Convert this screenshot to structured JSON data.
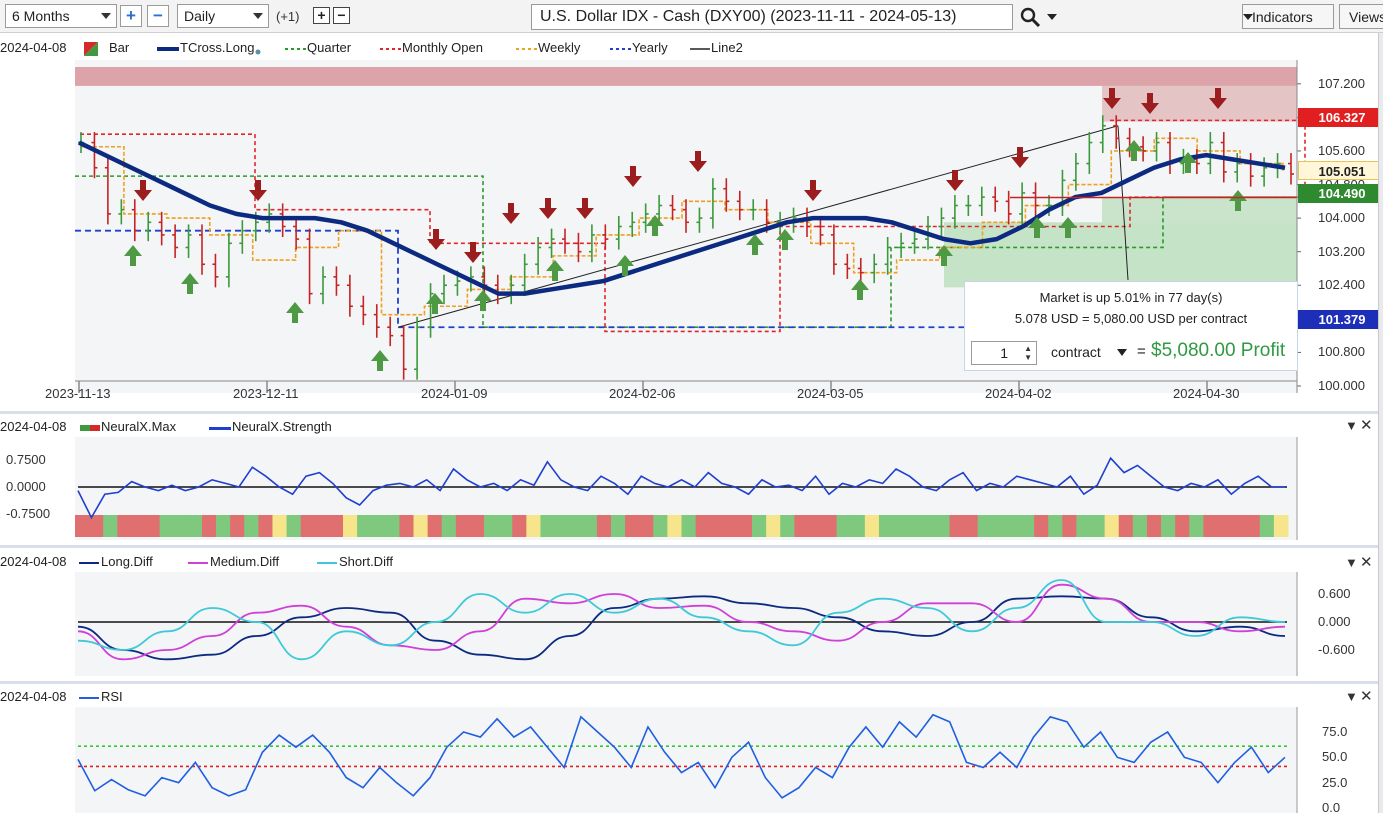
{
  "toolbar": {
    "range": "6 Months",
    "interval": "Daily",
    "offset": "(+1)",
    "zoom_in": "+",
    "zoom_out": "−",
    "add_label": "+",
    "remove_label": "−",
    "title": "U.S. Dollar IDX - Cash (DXY00) (2023-11-11 - 2024-05-13)",
    "indicators": "Indicators",
    "views": "Views"
  },
  "colors": {
    "tcross": "#0b2a80",
    "up_arrow": "#4e9a44",
    "down_arrow": "#9c1d1d",
    "quarter": "#2a9a2a",
    "monthly_open": "#e0262b",
    "weekly": "#f0a020",
    "yearly": "#1f3fcf",
    "line2": "#222222",
    "resistance_zone": "#d99a9f",
    "support_zone": "#9fd49f"
  },
  "main_pane": {
    "date_label": "2024-04-08",
    "legend": [
      {
        "name": "Bar",
        "icon": "bar-swatch-icon"
      },
      {
        "name": "TCross.Long",
        "icon": "dot-icon"
      },
      {
        "name": "Quarter"
      },
      {
        "name": "Monthly Open"
      },
      {
        "name": "Weekly"
      },
      {
        "name": "Yearly"
      },
      {
        "name": "Line2"
      }
    ],
    "price_tags": {
      "monthly_open": "106.327",
      "last": "105.051",
      "support": "104.490",
      "yearly": "101.379"
    },
    "y_ticks": [
      "107.200",
      "106.400",
      "105.600",
      "104.800",
      "104.000",
      "103.200",
      "102.400",
      "101.600",
      "100.800",
      "100.000"
    ],
    "x_ticks": [
      "2023-11-13",
      "2023-12-11",
      "2024-01-09",
      "2024-02-06",
      "2024-03-05",
      "2024-04-02",
      "2024-04-30"
    ]
  },
  "profit_box": {
    "summary": "Market is up 5.01% in 77 day(s)",
    "detail": "5.078 USD = 5,080.00 USD per contract",
    "quantity": "1",
    "unit": "contract",
    "equals": "=",
    "profit": "$5,080.00 Profit"
  },
  "neural_pane": {
    "date_label": "2024-04-08",
    "legend": [
      {
        "name": "NeuralX.Max"
      },
      {
        "name": "NeuralX.Strength"
      }
    ],
    "y_ticks": [
      "0.7500",
      "0.0000",
      "-0.7500"
    ]
  },
  "diff_pane": {
    "date_label": "2024-04-08",
    "legend": [
      {
        "name": "Long.Diff"
      },
      {
        "name": "Medium.Diff"
      },
      {
        "name": "Short.Diff"
      }
    ],
    "y_ticks": [
      "0.600",
      "0.000",
      "-0.600"
    ]
  },
  "rsi_pane": {
    "date_label": "2024-04-08",
    "legend": [
      {
        "name": "RSI"
      }
    ],
    "y_ticks": [
      "75.0",
      "50.0",
      "25.0",
      "0.0"
    ]
  },
  "chart_data": [
    {
      "type": "line",
      "x_range": [
        "2023-11-13",
        "2024-05-13"
      ],
      "ylim": [
        100.0,
        107.6
      ],
      "series": [
        {
          "name": "Bar",
          "values": [
            105.8,
            105.2,
            104.1,
            104.2,
            103.7,
            103.9,
            103.6,
            103.3,
            103.6,
            102.9,
            102.6,
            103.4,
            103.7,
            103.9,
            104.1,
            103.8,
            103.5,
            102.2,
            102.6,
            102.4,
            101.9,
            101.7,
            101.4,
            101.2,
            100.4,
            101.4,
            102.2,
            102.4,
            102.5,
            102.6,
            102.4,
            102.2,
            102.4,
            102.9,
            103.3,
            103.5,
            103.4,
            103.2,
            103.6,
            103.5,
            103.8,
            103.9,
            104.1,
            104.3,
            104.2,
            103.9,
            104.0,
            104.7,
            104.4,
            104.2,
            104.2,
            103.9,
            103.9,
            104.0,
            103.8,
            103.6,
            102.9,
            102.8,
            102.7,
            102.9,
            103.3,
            103.4,
            103.5,
            103.8,
            104.0,
            104.3,
            104.3,
            104.5,
            104.4,
            104.1,
            104.6,
            104.3,
            104.3,
            104.9,
            105.3,
            105.8,
            106.2,
            105.9,
            105.7,
            105.6,
            105.8,
            105.3,
            105.4,
            105.3,
            105.8,
            105.1,
            105.3,
            105.0,
            105.2,
            105.3,
            105.05
          ]
        },
        {
          "name": "TCross.Long",
          "values": [
            105.8,
            105.5,
            105.2,
            104.9,
            104.6,
            104.3,
            104.1,
            104.0,
            104.0,
            104.0,
            103.9,
            103.7,
            103.4,
            103.1,
            102.8,
            102.5,
            102.2,
            102.2,
            102.3,
            102.4,
            102.5,
            102.7,
            102.9,
            103.1,
            103.3,
            103.5,
            103.7,
            103.9,
            104.0,
            104.0,
            104.0,
            103.9,
            103.7,
            103.5,
            103.4,
            103.5,
            103.8,
            104.2,
            104.5,
            104.6,
            104.9,
            105.2,
            105.4,
            105.5,
            105.4,
            105.3,
            105.2
          ]
        },
        {
          "name": "Quarter",
          "values": [
            105.0,
            105.0,
            105.0,
            101.4,
            101.4,
            101.4,
            103.3,
            103.3,
            104.5,
            104.5
          ]
        },
        {
          "name": "Monthly Open",
          "values": [
            106.0,
            104.2,
            103.4,
            101.3,
            103.8,
            103.8,
            104.5,
            106.3
          ]
        },
        {
          "name": "Weekly",
          "values": [
            105.7,
            104.1,
            104.0,
            103.6,
            103.0,
            103.3,
            103.7,
            101.7,
            101.9,
            102.3,
            102.6,
            103.1,
            103.6,
            104.0,
            104.4,
            104.2,
            103.9,
            103.4,
            102.7,
            103.0,
            103.3,
            103.9,
            104.3,
            104.8,
            105.6,
            105.9,
            105.6,
            105.3,
            105.1
          ]
        },
        {
          "name": "Yearly",
          "values": [
            103.7,
            103.7,
            101.4,
            101.4
          ]
        },
        {
          "name": "Line2",
          "values": [
            101.4,
            106.2
          ]
        }
      ]
    },
    {
      "type": "line",
      "ylim": [
        -1.0,
        1.0
      ],
      "series": [
        {
          "name": "NeuralX.Strength",
          "values": [
            -0.1,
            -0.85,
            -0.2,
            -0.15,
            0.15,
            0.0,
            -0.1,
            0.05,
            -0.1,
            0.0,
            0.2,
            0.1,
            0.0,
            0.55,
            0.3,
            0.0,
            -0.2,
            0.3,
            0.4,
            0.1,
            -0.3,
            -0.5,
            -0.1,
            0.05,
            0.1,
            0.0,
            0.2,
            -0.1,
            0.5,
            0.2,
            0.0,
            0.1,
            -0.1,
            0.2,
            0.05,
            0.7,
            0.2,
            0.0,
            -0.1,
            0.3,
            0.1,
            -0.2,
            0.3,
            0.1,
            0.0,
            0.2,
            0.0,
            0.4,
            0.1,
            0.0,
            -0.2,
            0.2,
            0.0,
            0.05,
            -0.1,
            0.3,
            -0.2,
            0.1,
            0.0,
            0.2,
            0.1,
            0.5,
            0.3,
            0.0,
            -0.1,
            0.2,
            0.4,
            -0.1,
            0.1,
            0.0,
            0.3,
            0.2,
            0.1,
            0.0,
            0.3,
            -0.2,
            0.05,
            0.8,
            0.4,
            0.6,
            0.3,
            0.0,
            -0.1,
            0.1,
            0.0,
            0.2,
            -0.2,
            0.1,
            0.3,
            0.0,
            0.0
          ]
        }
      ]
    },
    {
      "type": "line",
      "ylim": [
        -0.9,
        0.9
      ],
      "series": [
        {
          "name": "Long.Diff",
          "values": [
            -0.1,
            -0.6,
            -0.8,
            -0.7,
            -0.3,
            0.1,
            0.3,
            0.2,
            -0.4,
            -0.7,
            -0.8,
            -0.3,
            0.3,
            0.5,
            0.55,
            0.4,
            0.3,
            0.1,
            -0.2,
            -0.3,
            0.0,
            0.5,
            0.55,
            0.5,
            0.1,
            -0.2,
            -0.1,
            -0.3
          ]
        },
        {
          "name": "Medium.Diff",
          "values": [
            -0.2,
            -0.8,
            -0.6,
            -0.3,
            0.2,
            0.35,
            -0.1,
            -0.5,
            -0.6,
            -0.2,
            0.5,
            0.4,
            0.6,
            0.3,
            0.35,
            0.0,
            -0.2,
            -0.4,
            0.0,
            0.4,
            0.4,
            0.0,
            0.8,
            0.5,
            0.0,
            0.0,
            -0.2,
            -0.1
          ]
        },
        {
          "name": "Short.Diff",
          "values": [
            -0.4,
            -0.6,
            -0.2,
            0.3,
            0.0,
            -0.8,
            -0.2,
            -0.5,
            0.0,
            0.6,
            0.2,
            0.6,
            0.2,
            0.5,
            0.1,
            -0.2,
            -0.5,
            0.2,
            0.5,
            0.3,
            -0.2,
            0.3,
            0.9,
            0.0,
            0.0,
            -0.3,
            0.1,
            0.0
          ]
        }
      ]
    },
    {
      "type": "line",
      "ylim": [
        0,
        100
      ],
      "series": [
        {
          "name": "RSI",
          "values": [
            48,
            17,
            28,
            18,
            12,
            30,
            25,
            45,
            20,
            12,
            18,
            55,
            72,
            60,
            72,
            55,
            30,
            20,
            40,
            25,
            12,
            30,
            60,
            75,
            70,
            88,
            70,
            80,
            60,
            40,
            90,
            75,
            60,
            40,
            80,
            55,
            35,
            45,
            20,
            50,
            65,
            30,
            10,
            20,
            40,
            30,
            60,
            80,
            60,
            85,
            70,
            92,
            85,
            45,
            40,
            55,
            40,
            70,
            90,
            85,
            60,
            75,
            50,
            45,
            65,
            75,
            50,
            45,
            25,
            45,
            60,
            35,
            50
          ]
        }
      ]
    }
  ]
}
